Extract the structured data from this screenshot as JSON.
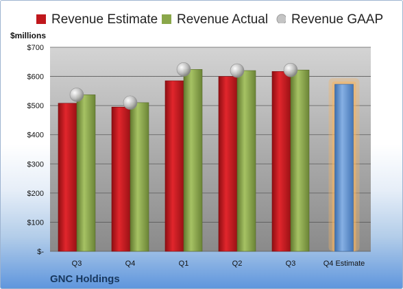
{
  "chart_data": {
    "type": "bar",
    "title": "",
    "ylabel": "$millions",
    "xlabel": "",
    "footer": "GNC Holdings",
    "categories": [
      "Q3",
      "Q4",
      "Q1",
      "Q2",
      "Q3",
      "Q4 Estimate"
    ],
    "ylim": [
      0,
      700
    ],
    "yticks": [
      0,
      100,
      200,
      300,
      400,
      500,
      600,
      700
    ],
    "ytick_labels": [
      "$-",
      "$100",
      "$200",
      "$300",
      "$400",
      "$500",
      "$600",
      "$700"
    ],
    "grid": true,
    "legend_position": "top",
    "series": [
      {
        "name": "Revenue Estimate",
        "kind": "bar",
        "color": "#c0171c",
        "values": [
          508,
          495,
          585,
          600,
          617,
          null
        ]
      },
      {
        "name": "Revenue Actual",
        "kind": "bar",
        "color": "#8aa74a",
        "values": [
          537,
          510,
          624,
          620,
          622,
          null
        ]
      },
      {
        "name": "Revenue GAAP",
        "kind": "marker",
        "color": "#b8b8b8",
        "values": [
          537,
          510,
          624,
          620,
          622,
          null
        ]
      }
    ],
    "forecast": {
      "category_index": 5,
      "value": 573,
      "color": "#5b8fd0",
      "highlight_color": "#f5b462"
    }
  }
}
